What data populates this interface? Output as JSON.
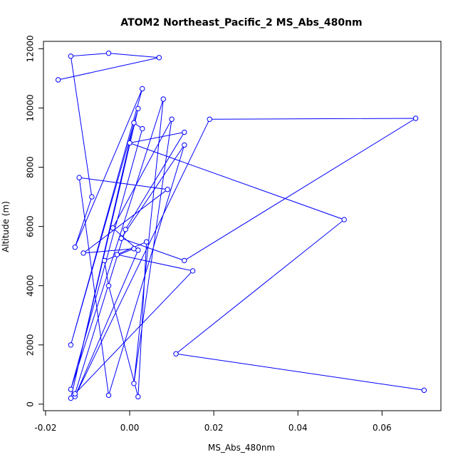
{
  "chart_data": {
    "type": "line",
    "title": "ATOM2 Northeast_Pacific_2 MS_Abs_480nm",
    "xlabel": "MS_Abs_480nm",
    "ylabel": "Altitude (m)",
    "xlim": [
      -0.0205,
      0.074
    ],
    "ylim": [
      -220,
      12250
    ],
    "x_ticks": [
      -0.02,
      0.0,
      0.02,
      0.04,
      0.06
    ],
    "x_tick_labels": [
      "-0.02",
      "0.00",
      "0.02",
      "0.04",
      "0.06"
    ],
    "y_ticks": [
      0,
      2000,
      4000,
      6000,
      8000,
      10000,
      12000
    ],
    "y_tick_labels": [
      "0",
      "2000",
      "4000",
      "6000",
      "8000",
      "10000",
      "12000"
    ],
    "grid": false,
    "legend": "none",
    "series": [
      {
        "color": "#0000ff",
        "marker": "open-circle",
        "x": [
          -0.017,
          0.007,
          -0.005,
          -0.014,
          -0.009,
          -0.013,
          0.003,
          -0.014,
          0.002,
          -0.014,
          0.001,
          0.003,
          -0.014,
          0.008,
          0.001,
          0.01,
          -0.004,
          0.002,
          -0.013,
          0.019,
          0.068,
          0.013,
          -0.002,
          0.013,
          -0.005,
          -0.012,
          0.009,
          -0.011,
          0.001,
          -0.006,
          -0.005,
          0.002,
          0.004,
          -0.003,
          0.015,
          -0.013,
          -0.001,
          0.013,
          0.0,
          0.051,
          0.011,
          0.07
        ],
        "y": [
          10950,
          11700,
          11850,
          11750,
          7000,
          5300,
          10650,
          2000,
          9980,
          200,
          9500,
          9300,
          500,
          10300,
          700,
          9620,
          5950,
          5200,
          260,
          9620,
          9650,
          4850,
          5600,
          8750,
          300,
          7650,
          7250,
          5100,
          5250,
          4850,
          4000,
          250,
          5480,
          5050,
          4500,
          350,
          5900,
          9180,
          8820,
          6230,
          1700,
          470
        ]
      }
    ]
  }
}
